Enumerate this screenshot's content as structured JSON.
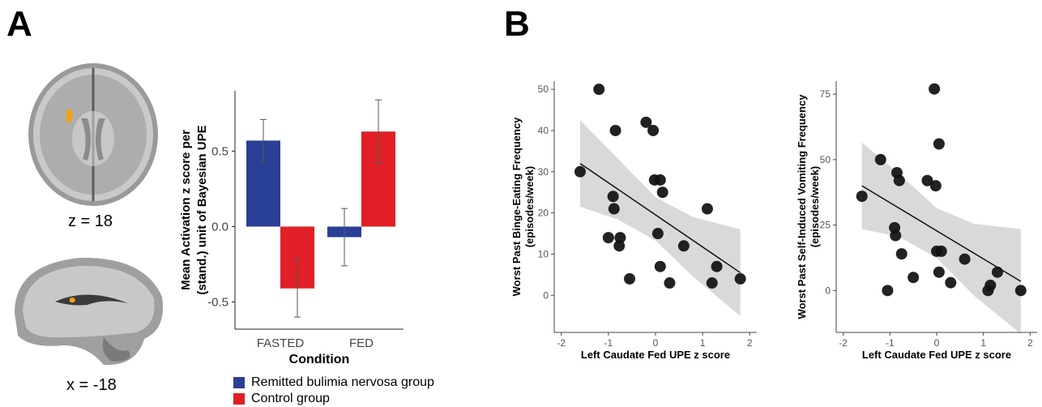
{
  "panels": {
    "a": "A",
    "b": "B"
  },
  "brain_labels": {
    "axial": "z = 18",
    "sagittal": "x = -18"
  },
  "colors": {
    "rbn": "#2a3f96",
    "control": "#e01f26",
    "points": "#111111",
    "ci_band": "#d9d9d9"
  },
  "legend": {
    "rbn": "Remitted bulimia nervosa group",
    "control": "Control group"
  },
  "chart_data": [
    {
      "type": "bar",
      "xlabel": "Condition",
      "ylabel_lines": [
        "Mean Activation z score per",
        "(stand.) unit of Bayesian UPE"
      ],
      "categories": [
        "FASTED",
        "FED"
      ],
      "yticks": [
        "0.5",
        "0.0",
        "-0.5"
      ],
      "ylim": [
        -0.68,
        0.9
      ],
      "series": [
        {
          "name": "Remitted bulimia nervosa group",
          "values": [
            0.57,
            -0.07
          ],
          "error": [
            0.14,
            0.19
          ]
        },
        {
          "name": "Control group",
          "values": [
            -0.41,
            0.63
          ],
          "error": [
            0.19,
            0.21
          ]
        }
      ]
    },
    {
      "type": "scatter",
      "xlabel": "Left Caudate Fed UPE z score",
      "ylabel_lines": [
        "Worst Past Binge-Eating Frequency",
        "(episodes/week)"
      ],
      "xticks": [
        "-2",
        "-1",
        "0",
        "1",
        "2"
      ],
      "yticks": [
        "0",
        "10",
        "20",
        "30",
        "40",
        "50"
      ],
      "xlim": [
        -2.15,
        2.15
      ],
      "ylim": [
        -9,
        52
      ],
      "points": [
        [
          -1.6,
          30
        ],
        [
          -1.2,
          50
        ],
        [
          -0.9,
          24
        ],
        [
          -0.88,
          21
        ],
        [
          -0.85,
          40
        ],
        [
          -1.0,
          14
        ],
        [
          -0.75,
          14
        ],
        [
          -0.77,
          12
        ],
        [
          -0.55,
          4
        ],
        [
          -0.2,
          42
        ],
        [
          -0.05,
          40
        ],
        [
          -0.02,
          28
        ],
        [
          0.1,
          28
        ],
        [
          0.15,
          25
        ],
        [
          0.05,
          15
        ],
        [
          0.1,
          7
        ],
        [
          0.3,
          3
        ],
        [
          0.6,
          12
        ],
        [
          1.1,
          21
        ],
        [
          1.2,
          3
        ],
        [
          1.3,
          7
        ],
        [
          1.8,
          4
        ]
      ],
      "fit_line": [
        [
          -1.6,
          32.0
        ],
        [
          1.8,
          5.5
        ]
      ],
      "ci_upper": [
        [
          -1.6,
          42.5
        ],
        [
          -0.8,
          33.2
        ],
        [
          0,
          23.8
        ],
        [
          0.8,
          19.0
        ],
        [
          1.8,
          16.0
        ]
      ],
      "ci_lower": [
        [
          -1.6,
          21.5
        ],
        [
          -0.8,
          18.4
        ],
        [
          0,
          13.3
        ],
        [
          0.8,
          4.5
        ],
        [
          1.8,
          -5.0
        ]
      ]
    },
    {
      "type": "scatter",
      "xlabel": "Left Caudate Fed UPE z score",
      "ylabel_lines": [
        "Worst Past Self-Induced Vomiting Frequency",
        "(episodes/week)"
      ],
      "xticks": [
        "-2",
        "-1",
        "0",
        "1",
        "2"
      ],
      "yticks": [
        "0",
        "25",
        "50",
        "75"
      ],
      "xlim": [
        -2.15,
        2.15
      ],
      "ylim": [
        -16,
        80
      ],
      "points": [
        [
          -1.6,
          36
        ],
        [
          -1.2,
          50
        ],
        [
          -0.9,
          24
        ],
        [
          -0.88,
          21
        ],
        [
          -0.85,
          45
        ],
        [
          -0.8,
          42
        ],
        [
          -0.75,
          14
        ],
        [
          -1.05,
          0
        ],
        [
          -0.5,
          5
        ],
        [
          -0.2,
          42
        ],
        [
          -0.05,
          77
        ],
        [
          -0.02,
          40
        ],
        [
          0.05,
          56
        ],
        [
          0.0,
          15
        ],
        [
          0.1,
          15
        ],
        [
          0.05,
          7
        ],
        [
          0.3,
          3
        ],
        [
          0.6,
          12
        ],
        [
          1.1,
          0
        ],
        [
          1.15,
          2
        ],
        [
          1.3,
          7
        ],
        [
          1.8,
          0
        ]
      ],
      "fit_line": [
        [
          -1.6,
          40.0
        ],
        [
          1.8,
          3.5
        ]
      ],
      "ci_upper": [
        [
          -1.6,
          56.5
        ],
        [
          -0.8,
          44.5
        ],
        [
          0,
          31.5
        ],
        [
          0.8,
          25.5
        ],
        [
          1.8,
          23.5
        ]
      ],
      "ci_lower": [
        [
          -1.6,
          23.5
        ],
        [
          -0.8,
          20.5
        ],
        [
          0,
          12.5
        ],
        [
          0.8,
          -2.0
        ],
        [
          1.8,
          -16.5
        ]
      ]
    }
  ]
}
